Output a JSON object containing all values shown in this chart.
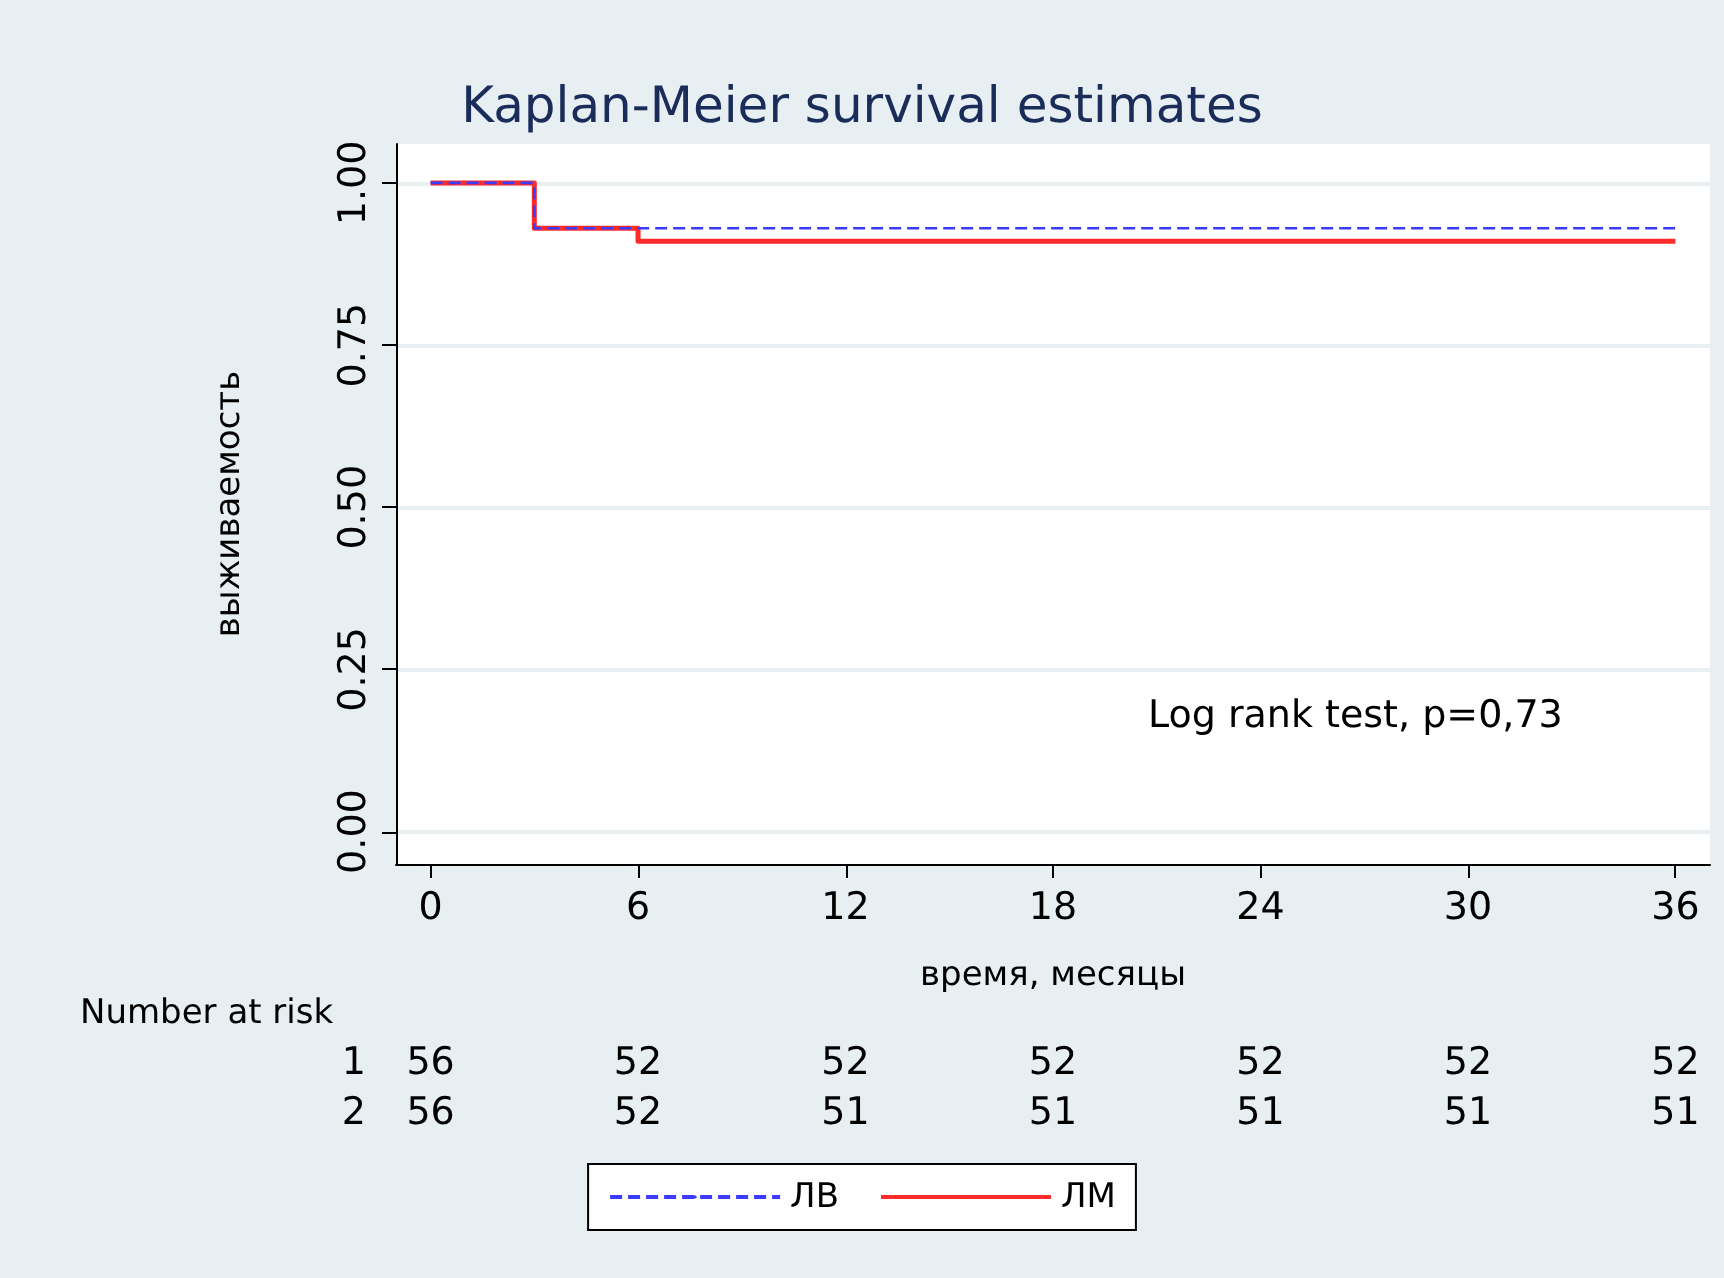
{
  "chart_data": {
    "type": "step",
    "title": "Kaplan-Meier survival estimates",
    "xlabel": "время, месяцы",
    "ylabel": "выживаемость",
    "x": [
      0,
      3,
      6,
      36
    ],
    "series": [
      {
        "name": "ЛВ",
        "color": "#3b3bff",
        "line_style": "dashed",
        "values": [
          1,
          0.93,
          0.93,
          0.93
        ]
      },
      {
        "name": "ЛМ",
        "color": "#ff2a2a",
        "line_style": "solid",
        "values": [
          1,
          0.93,
          0.91,
          0.91
        ]
      }
    ],
    "xlim": [
      -1,
      37
    ],
    "xticks": [
      0,
      6,
      12,
      18,
      24,
      30,
      36
    ],
    "ylim": [
      -0.05,
      1.06
    ],
    "yticks": [
      {
        "value": 0,
        "label": "0.00"
      },
      {
        "value": 0.25,
        "label": "0.25"
      },
      {
        "value": 0.5,
        "label": "0.50"
      },
      {
        "value": 0.75,
        "label": "0.75"
      },
      {
        "value": 1,
        "label": "1.00"
      }
    ],
    "grid": "y",
    "legend": "bottom",
    "annotations": [
      "Log rank test, p=0,73",
      "Number at risk",
      "1",
      "56",
      "52",
      "52",
      "52",
      "52",
      "52",
      "52",
      "2",
      "56",
      "52",
      "51",
      "51",
      "51",
      "51",
      "51"
    ]
  }
}
